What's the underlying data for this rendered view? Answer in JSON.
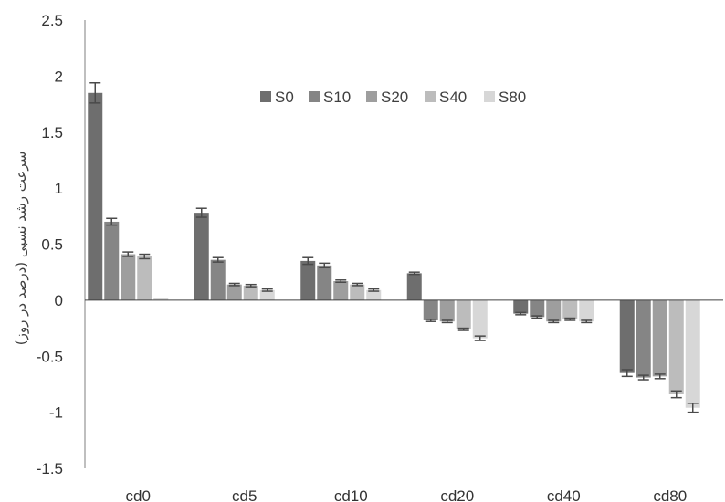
{
  "chart_data": {
    "type": "bar",
    "title": "",
    "xlabel": "",
    "ylabel": "سرعت رشد نسبی (درصد در روز)",
    "ylim": [
      -1.5,
      2.5
    ],
    "yticks": [
      "2.5",
      "2",
      "1.5",
      "1",
      "0.5",
      "0",
      "-0.5",
      "-1",
      "-1.5"
    ],
    "grid": false,
    "legend_position": "top",
    "categories": [
      "cd0",
      "cd5",
      "cd10",
      "cd20",
      "cd40",
      "cd80"
    ],
    "series": [
      {
        "name": "S0",
        "color": "#6e6e6e",
        "values": [
          1.85,
          0.78,
          0.35,
          0.24,
          -0.12,
          -0.65
        ],
        "errors": [
          0.09,
          0.04,
          0.03,
          0.01,
          0.01,
          0.03
        ]
      },
      {
        "name": "S10",
        "color": "#858585",
        "values": [
          0.7,
          0.36,
          0.31,
          -0.18,
          -0.15,
          -0.69
        ],
        "errors": [
          0.03,
          0.02,
          0.02,
          0.01,
          0.01,
          0.02
        ]
      },
      {
        "name": "S20",
        "color": "#9e9e9e",
        "values": [
          0.41,
          0.14,
          0.17,
          -0.19,
          -0.19,
          -0.68
        ],
        "errors": [
          0.02,
          0.01,
          0.01,
          0.01,
          0.01,
          0.02
        ]
      },
      {
        "name": "S40",
        "color": "#bcbcbc",
        "values": [
          0.39,
          0.13,
          0.14,
          -0.26,
          -0.17,
          -0.84
        ],
        "errors": [
          0.02,
          0.01,
          0.01,
          0.01,
          0.01,
          0.03
        ]
      },
      {
        "name": "S80",
        "color": "#d7d7d7",
        "values": [
          0.02,
          0.09,
          0.09,
          -0.34,
          -0.19,
          -0.96
        ],
        "errors": [
          0.0,
          0.01,
          0.01,
          0.02,
          0.01,
          0.04
        ]
      }
    ]
  }
}
